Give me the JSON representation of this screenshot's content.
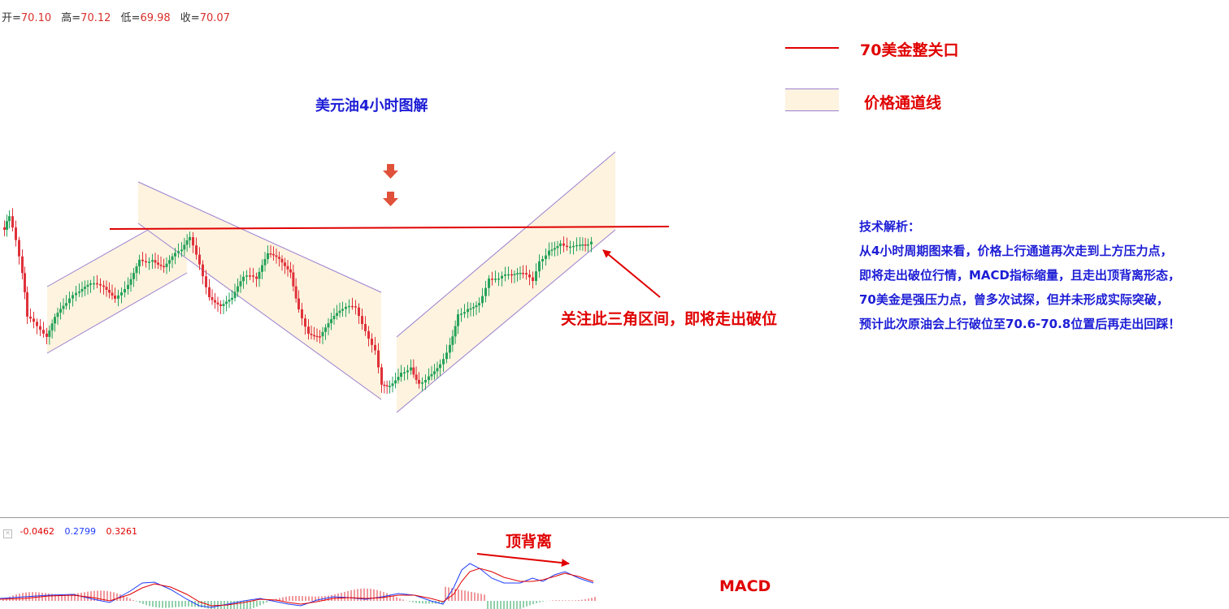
{
  "ohlc": {
    "open_label": "开=",
    "open": "70.10",
    "high_label": "高=",
    "high": "70.12",
    "low_label": "低=",
    "low": "69.98",
    "close_label": "收=",
    "close": "70.07"
  },
  "legend": {
    "line_label": "70美金整关口",
    "channel_label": "价格通道线"
  },
  "title": "美元油4小时图解",
  "callout": "关注此三角区间，即将走出破位",
  "analysis": {
    "heading": "技术解析：",
    "lines": [
      "从4小时周期图来看，价格上行通道再次走到上方压力点，",
      "即将走出破位行情，MACD指标缩量，且走出顶背离形态，",
      "70美金是强压力点，曾多次试探，但并未形成实际突破，",
      "预计此次原油会上行破位至70.6-70.8位置后再走出回踩！"
    ]
  },
  "macd": {
    "values": [
      "-0.0462",
      "0.2799",
      "0.3261"
    ],
    "divergence_label": "顶背离",
    "indicator_label": "MACD"
  },
  "colors": {
    "up": "#26a35a",
    "down": "#e0313a",
    "resistance": "#e00000",
    "channel_fill": "#fdf3df",
    "channel_edge": "#9b7fd0",
    "text_blue": "#1d1dd6",
    "macd_dif": "#1f3cff",
    "macd_dea": "#e00000"
  },
  "chart_data": {
    "type": "candlestick",
    "resistance_level": 70.0,
    "last_bar": {
      "open": 70.1,
      "high": 70.12,
      "low": 69.98,
      "close": 70.07
    },
    "annotations": [
      "70美金整关口",
      "价格通道线",
      "关注此三角区间，即将走出破位",
      "顶背离"
    ]
  }
}
